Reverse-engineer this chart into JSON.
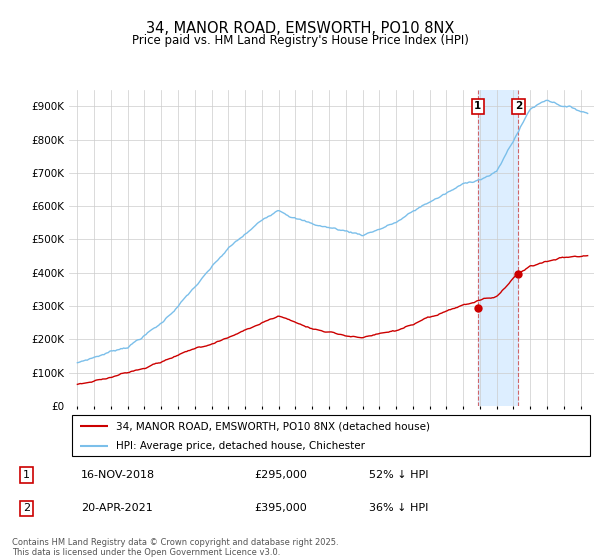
{
  "title": "34, MANOR ROAD, EMSWORTH, PO10 8NX",
  "subtitle": "Price paid vs. HM Land Registry's House Price Index (HPI)",
  "ylim": [
    0,
    950000
  ],
  "yticks": [
    0,
    100000,
    200000,
    300000,
    400000,
    500000,
    600000,
    700000,
    800000,
    900000
  ],
  "ytick_labels": [
    "£0",
    "£100K",
    "£200K",
    "£300K",
    "£400K",
    "£500K",
    "£600K",
    "£700K",
    "£800K",
    "£900K"
  ],
  "hpi_color": "#7bbfea",
  "price_color": "#cc0000",
  "shaded_color": "#ddeeff",
  "legend_line1": "34, MANOR ROAD, EMSWORTH, PO10 8NX (detached house)",
  "legend_line2": "HPI: Average price, detached house, Chichester",
  "transaction1_date": "16-NOV-2018",
  "transaction1_price": "£295,000",
  "transaction1_hpi": "52% ↓ HPI",
  "transaction2_date": "20-APR-2021",
  "transaction2_price": "£395,000",
  "transaction2_hpi": "36% ↓ HPI",
  "footer": "Contains HM Land Registry data © Crown copyright and database right 2025.\nThis data is licensed under the Open Government Licence v3.0.",
  "xlim_start": 1994.5,
  "xlim_end": 2025.8,
  "t_marker1": 2018.88,
  "t_marker2": 2021.29,
  "marker1_price": 295000,
  "marker2_price": 395000
}
